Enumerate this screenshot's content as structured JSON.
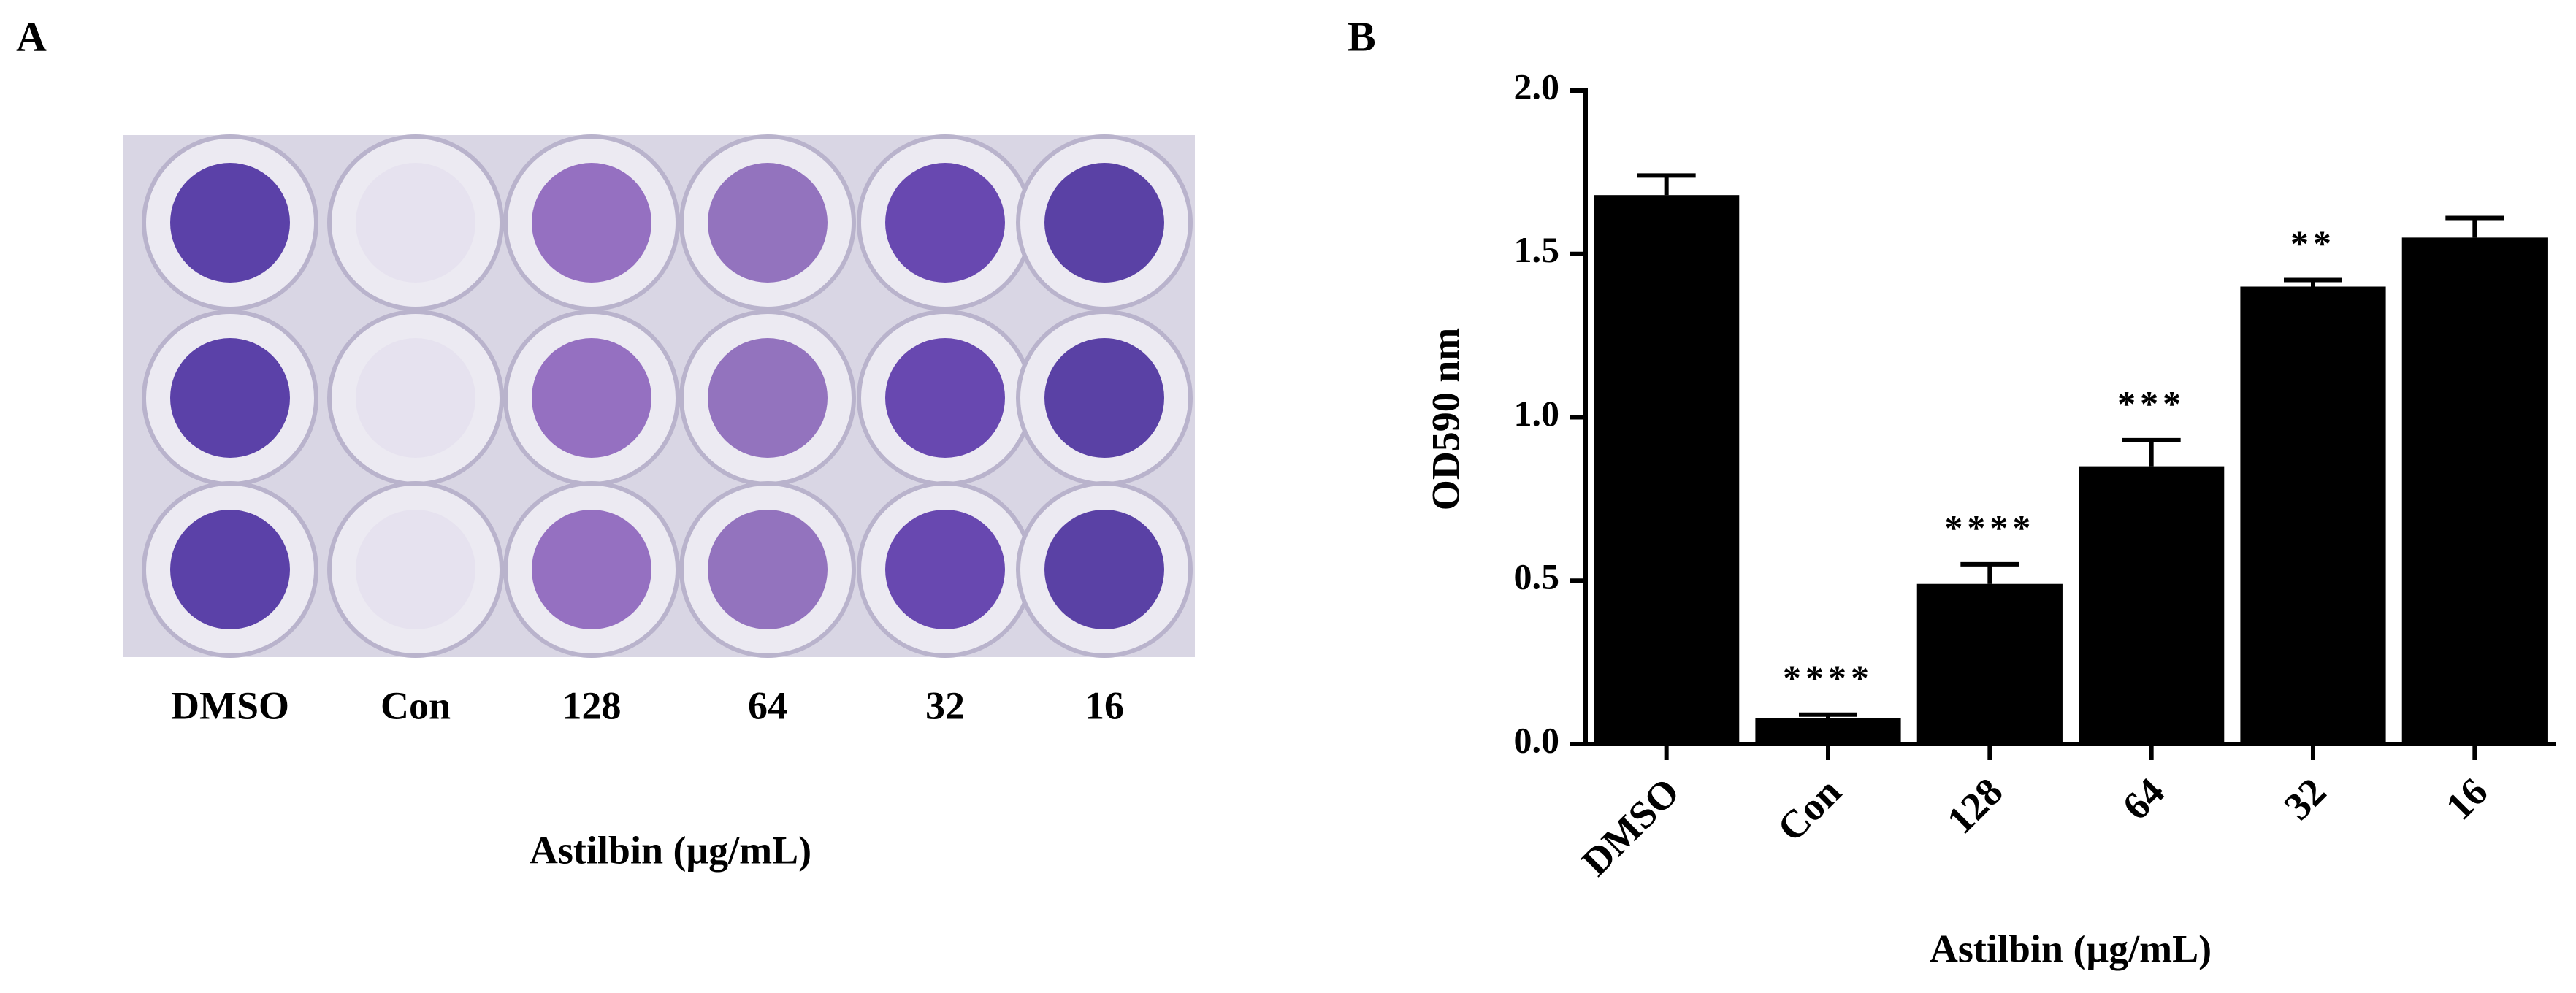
{
  "panel_a": {
    "label": "A",
    "lanes": [
      "DMSO",
      "Con",
      "128",
      "64",
      "32",
      "16"
    ],
    "xlabel": "Astilbin (μg/mL)"
  },
  "chart_data": {
    "type": "bar",
    "panel_label": "B",
    "categories": [
      "DMSO",
      "Con",
      "128",
      "64",
      "32",
      "16"
    ],
    "values": [
      1.68,
      0.08,
      0.49,
      0.85,
      1.4,
      1.55
    ],
    "errors": [
      0.06,
      0.01,
      0.06,
      0.08,
      0.02,
      0.06
    ],
    "annotations": [
      null,
      "****",
      "****",
      "***",
      "**",
      null
    ],
    "color": "#000000",
    "ylabel": "OD590 nm",
    "xlabel": "Astilbin (μg/mL)",
    "ylim": [
      0,
      2.0
    ],
    "yticks": [
      {
        "value": 0,
        "label": "0.0"
      },
      0.5,
      {
        "value": 1,
        "label": "1.0"
      },
      1.5,
      {
        "value": 2,
        "label": "2.0"
      }
    ]
  }
}
